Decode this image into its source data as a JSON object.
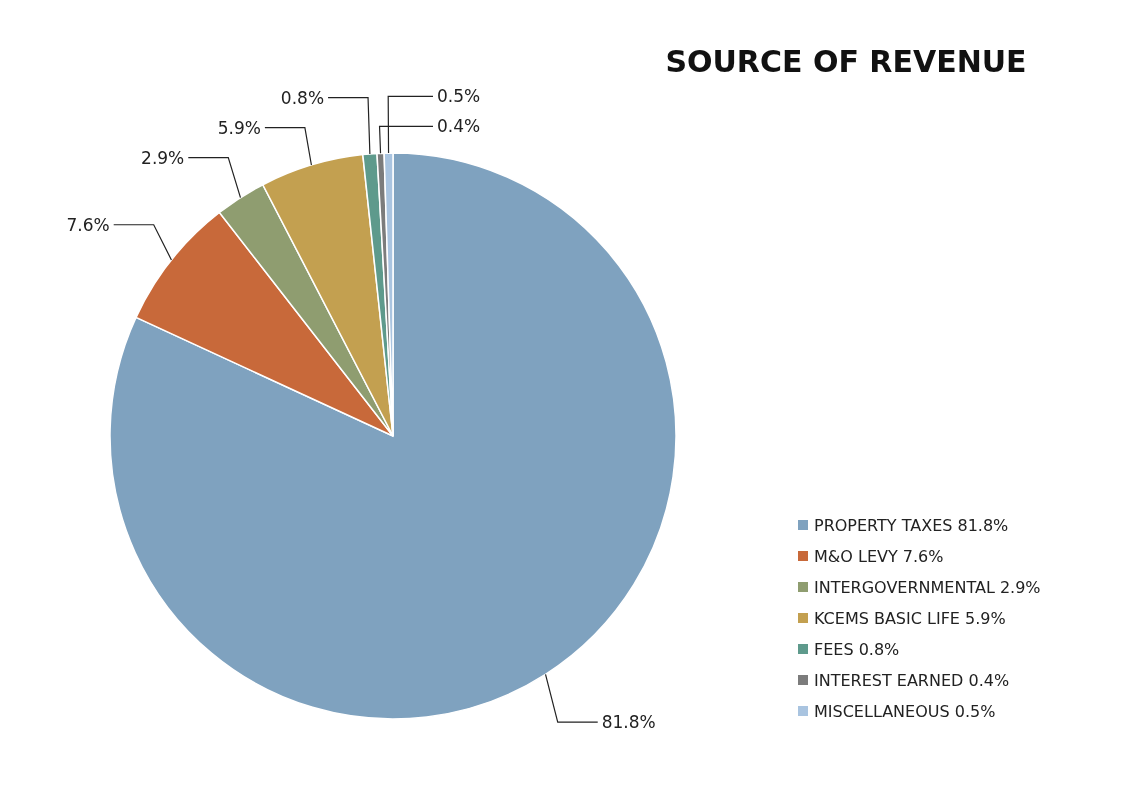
{
  "chart_data": {
    "type": "pie",
    "title": "SOURCE OF REVENUE",
    "categories": [
      "PROPERTY TAXES",
      "M&O LEVY",
      "INTERGOVERNMENTAL",
      "KCEMS BASIC LIFE",
      "FEES",
      "INTEREST EARNED",
      "MISCELLANEOUS"
    ],
    "values": [
      81.8,
      7.6,
      2.9,
      5.9,
      0.8,
      0.4,
      0.5
    ],
    "colors": [
      "#7fa2bf",
      "#c8693a",
      "#8f9d70",
      "#c3a050",
      "#5e9a8c",
      "#7c7c7c",
      "#a9c4e0"
    ],
    "value_labels": [
      "81.8%",
      "7.6%",
      "2.9%",
      "5.9%",
      "0.8%",
      "0.4%",
      "0.5%"
    ],
    "legend": "bottom right"
  }
}
